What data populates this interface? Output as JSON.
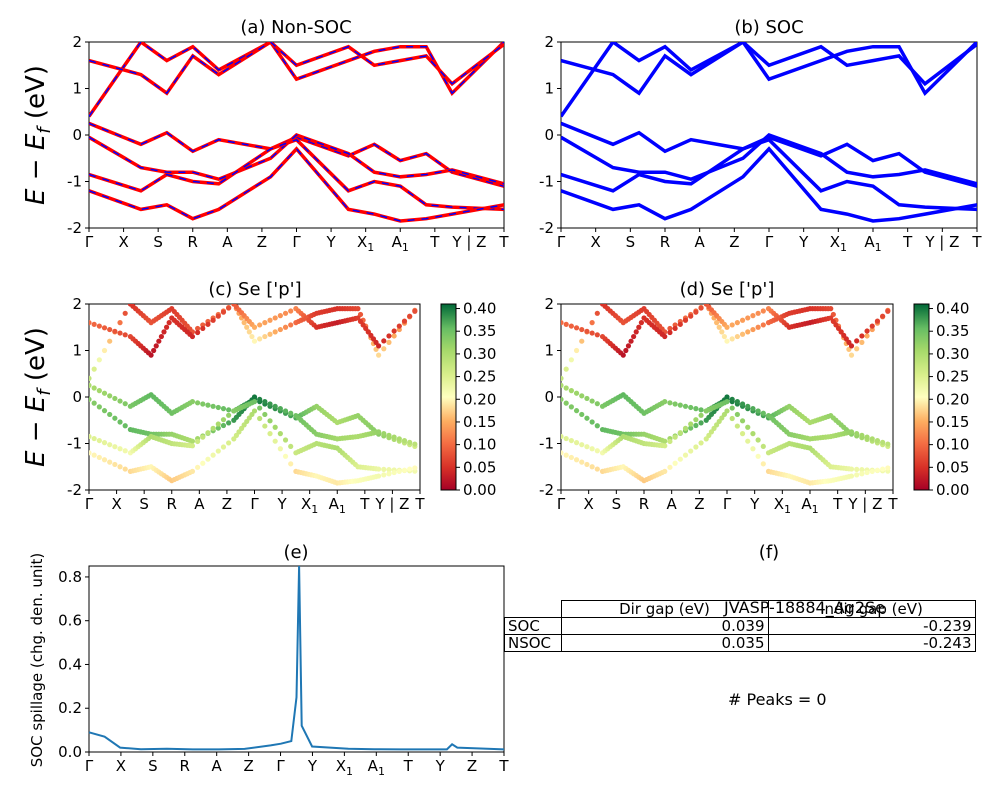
{
  "chart_data": [
    {
      "panel": "a",
      "type": "line",
      "title": "(a) Non-SOC",
      "ylabel": "E - E_f (eV)",
      "ylim": [
        -2,
        2
      ],
      "yticks": [
        "-2",
        "-1",
        "0",
        "1",
        "2"
      ],
      "xticks": [
        "Γ",
        "X",
        "S",
        "R",
        "A",
        "Z",
        "Γ",
        "Y",
        "X_1",
        "A_1",
        "T",
        "Y | Z",
        "T"
      ],
      "x": [
        0,
        1,
        1.5,
        2,
        2.5,
        3.5,
        4,
        5,
        5.5,
        6,
        6.5,
        7,
        8
      ],
      "series": [
        {
          "values": [
            0.25,
            -0.2,
            0.05,
            -0.35,
            -0.1,
            -0.3,
            -0.05,
            -0.45,
            -0.2,
            -0.55,
            -0.4,
            -0.8,
            -1.1
          ]
        },
        {
          "values": [
            -0.05,
            -0.7,
            -0.8,
            -0.8,
            -0.95,
            -0.5,
            0.0,
            -0.4,
            -0.8,
            -0.9,
            -0.85,
            -0.75,
            -1.05
          ]
        },
        {
          "values": [
            -0.85,
            -1.2,
            -0.85,
            -1.0,
            -1.05,
            -0.3,
            -0.1,
            -1.2,
            -1.0,
            -1.1,
            -1.5,
            -1.55,
            -1.6
          ]
        },
        {
          "values": [
            -1.2,
            -1.6,
            -1.5,
            -1.8,
            -1.6,
            -0.9,
            -0.3,
            -1.6,
            -1.7,
            -1.85,
            -1.8,
            -1.7,
            -1.5
          ]
        },
        {
          "values": [
            0.4,
            2.0,
            1.6,
            1.9,
            1.4,
            2.0,
            1.2,
            1.6,
            1.8,
            1.9,
            1.9,
            0.9,
            2.0
          ]
        },
        {
          "values": [
            1.6,
            1.3,
            0.9,
            1.7,
            1.3,
            2.0,
            1.5,
            1.9,
            1.5,
            1.6,
            1.7,
            1.1,
            1.95
          ]
        }
      ]
    },
    {
      "panel": "b",
      "type": "line",
      "title": "(b) SOC",
      "ylim": [
        -2,
        2
      ],
      "yticks": [
        "-2",
        "-1",
        "0",
        "1",
        "2"
      ],
      "xticks": [
        "Γ",
        "X",
        "S",
        "R",
        "A",
        "Z",
        "Γ",
        "Y",
        "X_1",
        "A_1",
        "T",
        "Y | Z",
        "T"
      ],
      "x": [
        0,
        1,
        1.5,
        2,
        2.5,
        3.5,
        4,
        5,
        5.5,
        6,
        6.5,
        7,
        8
      ],
      "series": [
        {
          "values": [
            0.25,
            -0.2,
            0.05,
            -0.35,
            -0.1,
            -0.3,
            -0.05,
            -0.45,
            -0.2,
            -0.55,
            -0.4,
            -0.8,
            -1.1
          ]
        },
        {
          "values": [
            -0.05,
            -0.7,
            -0.8,
            -0.8,
            -0.95,
            -0.5,
            0.0,
            -0.4,
            -0.8,
            -0.9,
            -0.85,
            -0.75,
            -1.05
          ]
        },
        {
          "values": [
            -0.85,
            -1.2,
            -0.85,
            -1.0,
            -1.05,
            -0.3,
            -0.1,
            -1.2,
            -1.0,
            -1.1,
            -1.5,
            -1.55,
            -1.6
          ]
        },
        {
          "values": [
            -1.2,
            -1.6,
            -1.5,
            -1.8,
            -1.6,
            -0.9,
            -0.3,
            -1.6,
            -1.7,
            -1.85,
            -1.8,
            -1.7,
            -1.5
          ]
        },
        {
          "values": [
            0.4,
            2.0,
            1.6,
            1.9,
            1.4,
            2.0,
            1.2,
            1.6,
            1.8,
            1.9,
            1.9,
            0.9,
            2.0
          ]
        },
        {
          "values": [
            1.6,
            1.3,
            0.9,
            1.7,
            1.3,
            2.0,
            1.5,
            1.9,
            1.5,
            1.6,
            1.7,
            1.1,
            1.95
          ]
        }
      ]
    },
    {
      "panel": "c",
      "type": "scatter",
      "title": "(c)  Se ['p']",
      "ylabel": "E - E_f (eV)",
      "ylim": [
        -2,
        2
      ],
      "yticks": [
        "-2",
        "-1",
        "0",
        "1",
        "2"
      ],
      "xticks": [
        "Γ",
        "X",
        "S",
        "R",
        "A",
        "Z",
        "Γ",
        "Y",
        "X_1",
        "A_1",
        "T",
        "Y | Z",
        "T"
      ],
      "colorbar_ticks": [
        "0.00",
        "0.05",
        "0.10",
        "0.15",
        "0.20",
        "0.25",
        "0.30",
        "0.35",
        "0.40"
      ],
      "x": [
        0,
        1,
        1.5,
        2,
        2.5,
        3.5,
        4,
        5,
        5.5,
        6,
        6.5,
        7,
        8
      ],
      "series": [
        {
          "values": [
            0.25,
            -0.2,
            0.05,
            -0.35,
            -0.1,
            -0.3,
            -0.05,
            -0.45,
            -0.2,
            -0.55,
            -0.4,
            -0.8,
            -1.1
          ],
          "weights": [
            0.3,
            0.34,
            0.36,
            0.35,
            0.33,
            0.36,
            0.4,
            0.37,
            0.32,
            0.3,
            0.32,
            0.33,
            0.25
          ]
        },
        {
          "values": [
            -0.05,
            -0.7,
            -0.8,
            -0.8,
            -0.95,
            -0.5,
            0.0,
            -0.4,
            -0.8,
            -0.9,
            -0.85,
            -0.75,
            -1.05
          ],
          "weights": [
            0.33,
            0.36,
            0.35,
            0.32,
            0.3,
            0.38,
            0.4,
            0.35,
            0.33,
            0.31,
            0.3,
            0.32,
            0.28
          ]
        },
        {
          "values": [
            -0.85,
            -1.2,
            -0.85,
            -1.0,
            -1.05,
            -0.3,
            -0.1,
            -1.2,
            -1.0,
            -1.1,
            -1.5,
            -1.55,
            -1.6
          ],
          "weights": [
            0.25,
            0.22,
            0.3,
            0.28,
            0.26,
            0.33,
            0.35,
            0.27,
            0.29,
            0.3,
            0.25,
            0.23,
            0.22
          ]
        },
        {
          "values": [
            -1.2,
            -1.6,
            -1.5,
            -1.8,
            -1.6,
            -0.9,
            -0.3,
            -1.6,
            -1.7,
            -1.85,
            -1.8,
            -1.7,
            -1.5
          ],
          "weights": [
            0.2,
            0.18,
            0.2,
            0.17,
            0.19,
            0.26,
            0.3,
            0.18,
            0.2,
            0.19,
            0.21,
            0.22,
            0.2
          ]
        },
        {
          "values": [
            0.4,
            2.0,
            1.6,
            1.9,
            1.4,
            2.0,
            1.2,
            1.6,
            1.8,
            1.9,
            1.9,
            0.9,
            2.0
          ],
          "weights": [
            0.28,
            0.05,
            0.08,
            0.06,
            0.08,
            0.12,
            0.2,
            0.1,
            0.06,
            0.05,
            0.07,
            0.18,
            0.1
          ]
        },
        {
          "values": [
            1.6,
            1.3,
            0.9,
            1.7,
            1.3,
            2.0,
            1.5,
            1.9,
            1.5,
            1.6,
            1.7,
            1.1,
            1.95
          ],
          "weights": [
            0.1,
            0.07,
            0.02,
            0.05,
            0.04,
            0.08,
            0.15,
            0.12,
            0.05,
            0.03,
            0.06,
            0.04,
            0.08
          ]
        }
      ]
    },
    {
      "panel": "d",
      "type": "scatter",
      "title": "(d) Se ['p']",
      "ylim": [
        -2,
        2
      ],
      "yticks": [
        "-2",
        "-1",
        "0",
        "1",
        "2"
      ],
      "xticks": [
        "Γ",
        "X",
        "S",
        "R",
        "A",
        "Z",
        "Γ",
        "Y",
        "X_1",
        "A_1",
        "T",
        "Y | Z",
        "T"
      ],
      "colorbar_ticks": [
        "0.00",
        "0.05",
        "0.10",
        "0.15",
        "0.20",
        "0.25",
        "0.30",
        "0.35",
        "0.40"
      ],
      "x": [
        0,
        1,
        1.5,
        2,
        2.5,
        3.5,
        4,
        5,
        5.5,
        6,
        6.5,
        7,
        8
      ],
      "series": [
        {
          "values": [
            0.25,
            -0.2,
            0.05,
            -0.35,
            -0.1,
            -0.3,
            -0.05,
            -0.45,
            -0.2,
            -0.55,
            -0.4,
            -0.8,
            -1.1
          ],
          "weights": [
            0.3,
            0.34,
            0.36,
            0.35,
            0.33,
            0.36,
            0.4,
            0.37,
            0.32,
            0.3,
            0.32,
            0.33,
            0.25
          ]
        },
        {
          "values": [
            -0.05,
            -0.7,
            -0.8,
            -0.8,
            -0.95,
            -0.5,
            0.0,
            -0.4,
            -0.8,
            -0.9,
            -0.85,
            -0.75,
            -1.05
          ],
          "weights": [
            0.33,
            0.36,
            0.35,
            0.32,
            0.3,
            0.38,
            0.4,
            0.35,
            0.33,
            0.31,
            0.3,
            0.32,
            0.28
          ]
        },
        {
          "values": [
            -0.85,
            -1.2,
            -0.85,
            -1.0,
            -1.05,
            -0.3,
            -0.1,
            -1.2,
            -1.0,
            -1.1,
            -1.5,
            -1.55,
            -1.6
          ],
          "weights": [
            0.25,
            0.22,
            0.3,
            0.28,
            0.26,
            0.33,
            0.35,
            0.27,
            0.29,
            0.3,
            0.25,
            0.23,
            0.22
          ]
        },
        {
          "values": [
            -1.2,
            -1.6,
            -1.5,
            -1.8,
            -1.6,
            -0.9,
            -0.3,
            -1.6,
            -1.7,
            -1.85,
            -1.8,
            -1.7,
            -1.5
          ],
          "weights": [
            0.2,
            0.18,
            0.2,
            0.17,
            0.19,
            0.26,
            0.3,
            0.18,
            0.2,
            0.19,
            0.21,
            0.22,
            0.2
          ]
        },
        {
          "values": [
            0.4,
            2.0,
            1.6,
            1.9,
            1.4,
            2.0,
            1.2,
            1.6,
            1.8,
            1.9,
            1.9,
            0.9,
            2.0
          ],
          "weights": [
            0.28,
            0.05,
            0.08,
            0.06,
            0.08,
            0.12,
            0.2,
            0.1,
            0.06,
            0.05,
            0.07,
            0.18,
            0.1
          ]
        },
        {
          "values": [
            1.6,
            1.3,
            0.9,
            1.7,
            1.3,
            2.0,
            1.5,
            1.9,
            1.5,
            1.6,
            1.7,
            1.1,
            1.95
          ],
          "weights": [
            0.1,
            0.07,
            0.02,
            0.05,
            0.04,
            0.08,
            0.15,
            0.12,
            0.05,
            0.03,
            0.06,
            0.04,
            0.08
          ]
        }
      ]
    },
    {
      "panel": "e",
      "type": "line",
      "title": "(e)",
      "ylabel": "SOC spillage (chg. den. unit)",
      "ylim": [
        0,
        0.85
      ],
      "yticks": [
        "0.0",
        "0.2",
        "0.4",
        "0.6",
        "0.8"
      ],
      "xticks": [
        "Γ",
        "X",
        "S",
        "R",
        "A",
        "Z",
        "Γ",
        "Y",
        "X_1",
        "A_1",
        "T",
        "Y",
        "Z",
        "T"
      ],
      "x": [
        0,
        0.3,
        0.6,
        1.0,
        1.5,
        2.0,
        2.5,
        3.0,
        3.5,
        3.7,
        3.9,
        4.0,
        4.05,
        4.1,
        4.3,
        5.0,
        5.5,
        6.0,
        6.5,
        6.9,
        7.0,
        7.1,
        8.0
      ],
      "values": [
        0.09,
        0.07,
        0.02,
        0.013,
        0.015,
        0.012,
        0.012,
        0.014,
        0.03,
        0.038,
        0.05,
        0.25,
        0.85,
        0.12,
        0.025,
        0.015,
        0.013,
        0.012,
        0.012,
        0.012,
        0.035,
        0.02,
        0.012
      ]
    }
  ],
  "gap_panel": {
    "title": "(f)",
    "material": "JVASP-18884_Ag2Se",
    "columns": [
      "Dir gap (eV)",
      "Indir gap (eV)"
    ],
    "rows": [
      {
        "label": "SOC",
        "dir": "0.039",
        "indir": "-0.239"
      },
      {
        "label": "NSOC",
        "dir": "0.035",
        "indir": "-0.243"
      }
    ],
    "peaks": "# Peaks = 0"
  },
  "colors": {
    "nonsoc": "#ff0000",
    "soc": "#0000ff",
    "spillage": "#1f77b4"
  }
}
